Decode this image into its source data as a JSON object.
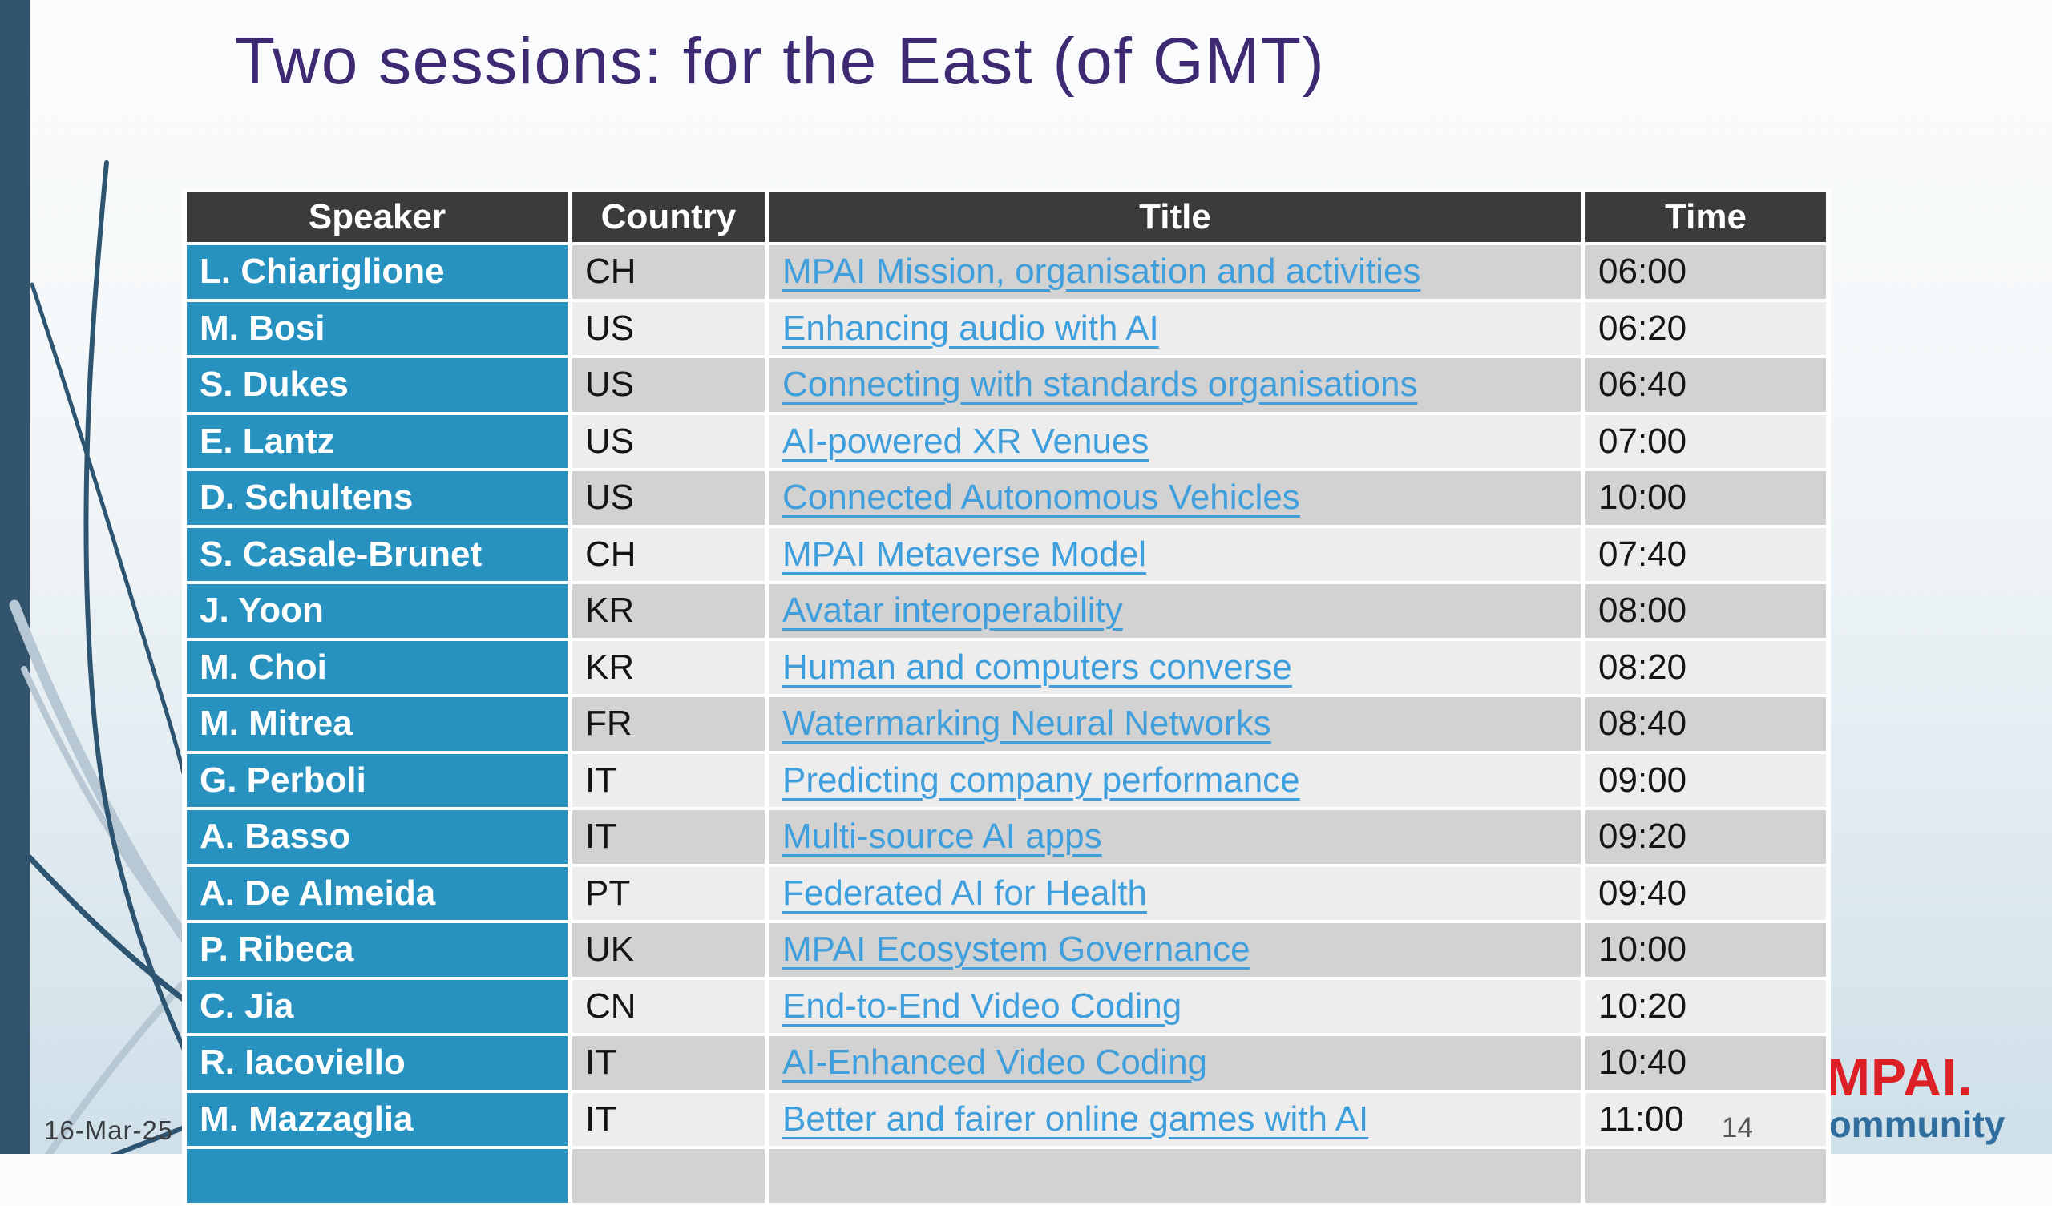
{
  "slide": {
    "title": "Two sessions: for the East (of GMT)",
    "date": "16-Mar-25",
    "page_number": "14",
    "logo": {
      "line1": "MPAI.",
      "line2": "community"
    },
    "colors": {
      "title_text": "#3E2A73",
      "accent_blue": "#2792BF",
      "link_blue": "#3F9EDC",
      "header_bg": "#3B3B3B",
      "row_dark": "#D2D2D2",
      "row_light": "#EDEDED",
      "left_bar": "#31536C",
      "logo_red": "#DD1F26",
      "logo_blue": "#2F6E9E"
    }
  },
  "table": {
    "columns": [
      "Speaker",
      "Country",
      "Title",
      "Time"
    ],
    "rows": [
      {
        "speaker": "L. Chiariglione",
        "country": "CH",
        "title": "MPAI Mission, organisation and activities",
        "time": "06:00"
      },
      {
        "speaker": "M. Bosi",
        "country": "US",
        "title": "Enhancing audio with AI",
        "time": "06:20"
      },
      {
        "speaker": "S. Dukes",
        "country": "US",
        "title": "Connecting with standards organisations",
        "time": "06:40"
      },
      {
        "speaker": "E. Lantz",
        "country": "US",
        "title": "AI-powered XR Venues",
        "time": "07:00"
      },
      {
        "speaker": "D. Schultens",
        "country": "US",
        "title": "Connected Autonomous Vehicles",
        "time": "10:00"
      },
      {
        "speaker": "S. Casale-Brunet",
        "country": "CH",
        "title": "MPAI Metaverse Model",
        "time": "07:40"
      },
      {
        "speaker": "J. Yoon",
        "country": "KR",
        "title": "Avatar interoperability",
        "time": "08:00"
      },
      {
        "speaker": "M. Choi",
        "country": "KR",
        "title": "Human and computers converse",
        "time": "08:20"
      },
      {
        "speaker": "M. Mitrea",
        "country": "FR",
        "title": "Watermarking Neural Networks",
        "time": "08:40"
      },
      {
        "speaker": "G. Perboli",
        "country": "IT",
        "title": "Predicting company performance",
        "time": "09:00"
      },
      {
        "speaker": "A. Basso",
        "country": "IT",
        "title": "Multi-source AI apps",
        "time": "09:20"
      },
      {
        "speaker": "A. De Almeida",
        "country": "PT",
        "title": "Federated AI for Health",
        "time": "09:40"
      },
      {
        "speaker": "P. Ribeca",
        "country": "UK",
        "title": "MPAI Ecosystem Governance",
        "time": "10:00"
      },
      {
        "speaker": "C. Jia",
        "country": "CN",
        "title": "End-to-End Video Coding",
        "time": "10:20"
      },
      {
        "speaker": "R. Iacoviello",
        "country": "IT",
        "title": "AI-Enhanced Video Coding",
        "time": "10:40"
      },
      {
        "speaker": "M. Mazzaglia",
        "country": "IT",
        "title": "Better and fairer online games with AI",
        "time": "11:00"
      }
    ]
  }
}
